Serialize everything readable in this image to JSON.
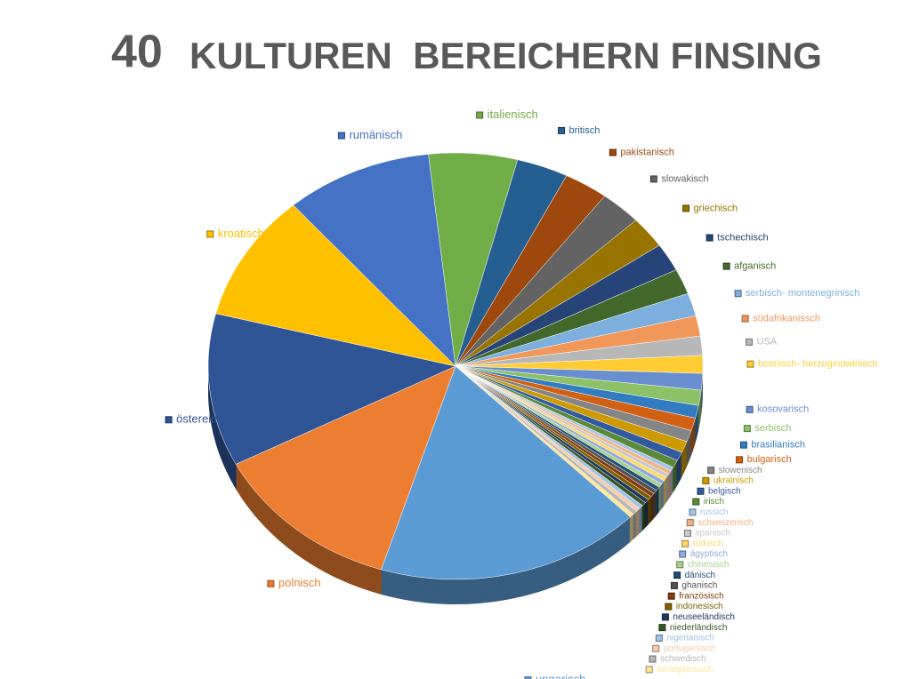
{
  "chart_data": {
    "type": "pie",
    "title_number": "40",
    "title": "KULTUREN  BEREICHERN FINSING",
    "categories": [
      "rumänisch",
      "italienisch",
      "britisch",
      "pakistanisch",
      "slowakisch",
      "griechisch",
      "tschechisch",
      "afganisch",
      "serbisch- montenegrinisch",
      "südafrikanissch",
      "USA",
      "bosnisch- herzoginowinisch",
      "kosovarisch",
      "serbisch",
      "brasilianisch",
      "bulgarisch",
      "slowenisch",
      "ukrainisch",
      "belgisch",
      "irisch",
      "russich",
      "schweizerisch",
      "spanisch",
      "türkisch",
      "ägyptisch",
      "chinesisch",
      "dänisch",
      "ghanisch",
      "französisch",
      "indonesisch",
      "neuseeländisch",
      "niederländisch",
      "nigerianisch",
      "portugiesisch",
      "schwedisch",
      "senegalesisch",
      "ungarisch",
      "polnisch",
      "östereichisch",
      "kroatisch"
    ],
    "values": [
      10,
      6,
      3.5,
      3,
      2.8,
      2.5,
      2.2,
      2,
      1.8,
      1.6,
      1.5,
      1.4,
      1.3,
      1.2,
      1,
      1,
      0.9,
      0.9,
      0.7,
      0.6,
      0.3,
      0.3,
      0.3,
      0.3,
      0.3,
      0.3,
      0.3,
      0.3,
      0.3,
      0.3,
      0.3,
      0.3,
      0.3,
      0.3,
      0.3,
      0.3,
      18,
      13,
      12,
      10
    ],
    "colors": [
      "#4472c4",
      "#70ad47",
      "#255e91",
      "#9e480e",
      "#636363",
      "#997300",
      "#264478",
      "#43682b",
      "#7cafdd",
      "#f1975a",
      "#b7b7b7",
      "#ffcd33",
      "#698ed0",
      "#8cc168",
      "#327dc2",
      "#d26012",
      "#848484",
      "#cc9a00",
      "#335aa1",
      "#5a8a39",
      "#a3c4e9",
      "#f4b183",
      "#c9c9c9",
      "#ffd966",
      "#8faadc",
      "#a9d18e",
      "#1f4e79",
      "#525252",
      "#843c0c",
      "#7f6000",
      "#203864",
      "#375623",
      "#9dc3e6",
      "#f8cbad",
      "#b7b7b7",
      "#ffe699",
      "#5b9bd5",
      "#ed7d31",
      "#2f5597",
      "#ffc000"
    ]
  }
}
